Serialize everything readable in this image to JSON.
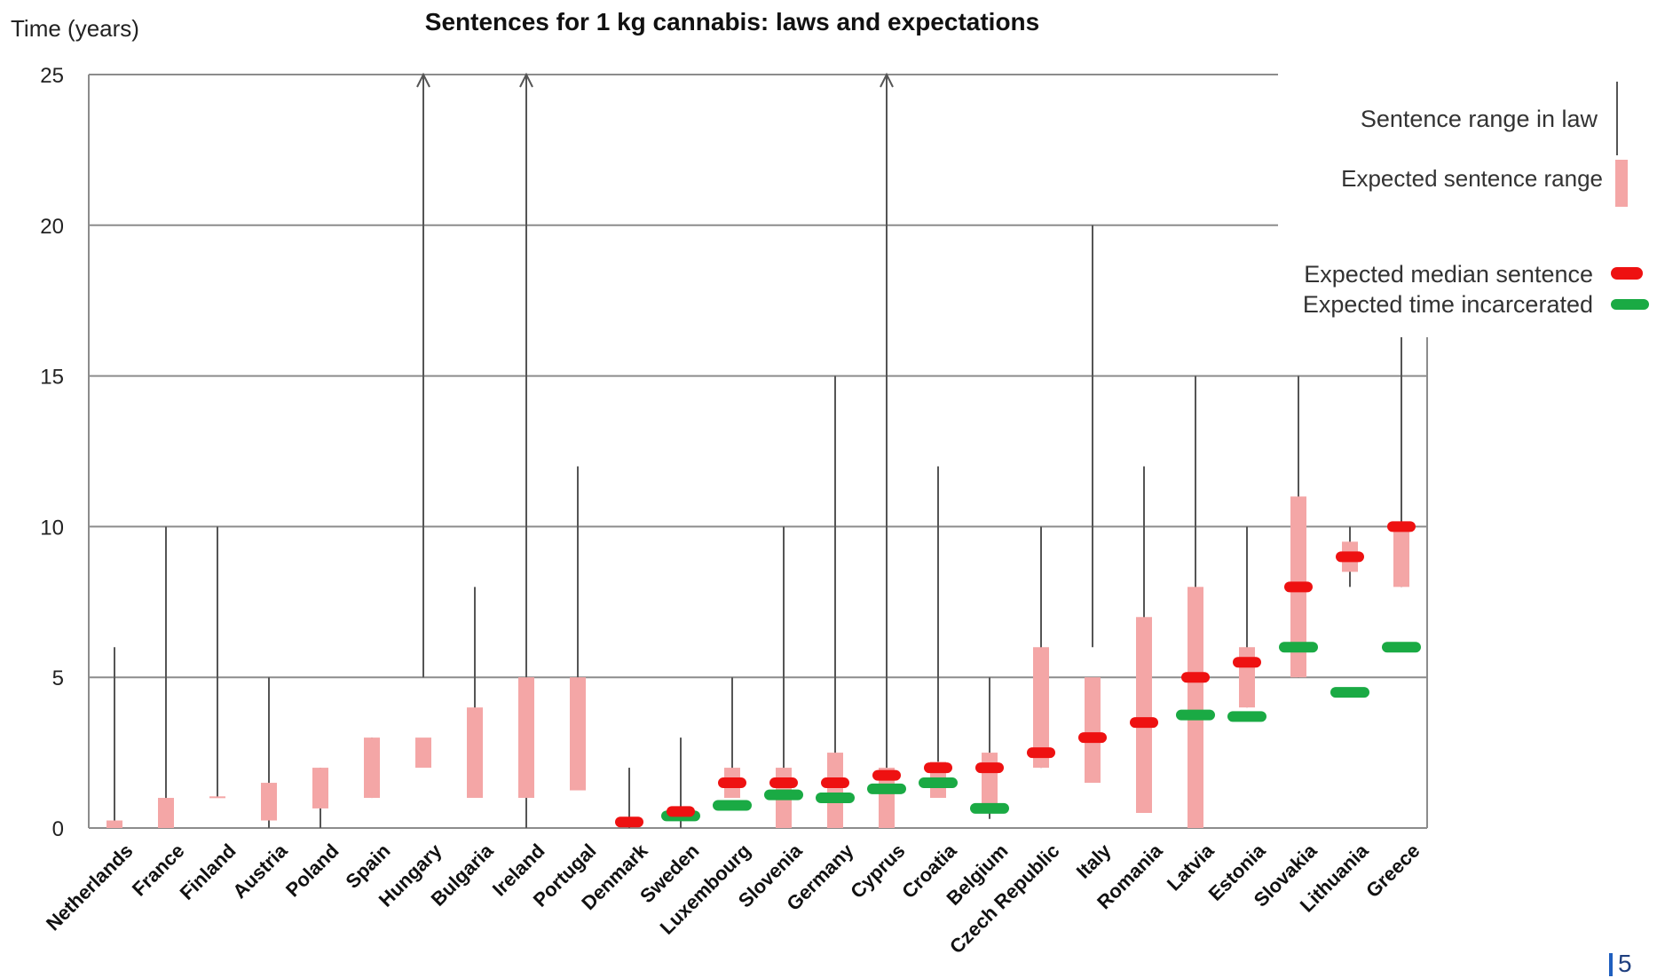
{
  "page": {
    "page_number": "5"
  },
  "colors": {
    "law": "#555555",
    "expected_range": "#f4a6a6",
    "median": "#ee1111",
    "incarcerated": "#1aaa44",
    "grid": "#8c8c8c"
  },
  "chart_data": {
    "type": "range",
    "title": "Sentences for 1 kg cannabis: laws and expectations",
    "ylabel": "Time (years)",
    "xlabel": "",
    "ylim": [
      0,
      25
    ],
    "yticks": [
      "0",
      "5",
      "10",
      "15",
      "20",
      "25"
    ],
    "grid": true,
    "legend_position": "top-right",
    "legend": {
      "law": "Sentence range in law",
      "expected_range": "Expected sentence range",
      "median": "Expected median sentence",
      "incarcerated": "Expected time incarcerated"
    },
    "categories": [
      "Netherlands",
      "France",
      "Finland",
      "Austria",
      "Poland",
      "Spain",
      "Hungary",
      "Bulgaria",
      "Ireland",
      "Portugal",
      "Denmark",
      "Sweden",
      "Luxembourg",
      "Slovenia",
      "Germany",
      "Cyprus",
      "Croatia",
      "Belgium",
      "Czech Republic",
      "Italy",
      "Romania",
      "Latvia",
      "Estonia",
      "Slovakia",
      "Lithuania",
      "Greece"
    ],
    "series": [
      {
        "name": "Sentence range in law",
        "values": [
          [
            0,
            6
          ],
          [
            0,
            10
          ],
          [
            1,
            10
          ],
          [
            0,
            5
          ],
          [
            0,
            2
          ],
          [
            1,
            3
          ],
          [
            5,
            25
          ],
          [
            2,
            8
          ],
          [
            0,
            25
          ],
          [
            4,
            12
          ],
          [
            0,
            2
          ],
          [
            0,
            3
          ],
          [
            1,
            5
          ],
          [
            0,
            10
          ],
          [
            0,
            15
          ],
          [
            0,
            25
          ],
          [
            1,
            12
          ],
          [
            0.3,
            5
          ],
          [
            2,
            10
          ],
          [
            6,
            20
          ],
          [
            2,
            12
          ],
          [
            0,
            15
          ],
          [
            4,
            10
          ],
          [
            5,
            15
          ],
          [
            8,
            10
          ],
          [
            8,
            20
          ]
        ]
      },
      {
        "name": "Expected sentence range",
        "values": [
          [
            0,
            0.25
          ],
          [
            0,
            1
          ],
          [
            1,
            1.05
          ],
          [
            0.25,
            1.5
          ],
          [
            0.65,
            2
          ],
          [
            1,
            3
          ],
          [
            2,
            3
          ],
          [
            1,
            4
          ],
          [
            1,
            5
          ],
          [
            1.25,
            5
          ],
          [
            null,
            null
          ],
          [
            null,
            null
          ],
          [
            1,
            2
          ],
          [
            0,
            2
          ],
          [
            0,
            2.5
          ],
          [
            0,
            2
          ],
          [
            1,
            2.2
          ],
          [
            0.5,
            2.5
          ],
          [
            2,
            6
          ],
          [
            1.5,
            5
          ],
          [
            0.5,
            7
          ],
          [
            0,
            8
          ],
          [
            4,
            6
          ],
          [
            5,
            11
          ],
          [
            8.5,
            9.5
          ],
          [
            8,
            10
          ]
        ]
      },
      {
        "name": "Expected median sentence",
        "values": [
          null,
          null,
          null,
          null,
          null,
          null,
          null,
          null,
          null,
          null,
          0.2,
          0.55,
          1.5,
          1.5,
          1.5,
          1.75,
          2,
          2,
          2.5,
          3,
          3.5,
          5,
          5.5,
          8,
          9,
          10
        ]
      },
      {
        "name": "Expected time incarcerated",
        "values": [
          null,
          null,
          null,
          null,
          null,
          null,
          null,
          null,
          null,
          null,
          null,
          0.4,
          0.75,
          1.1,
          1,
          1.3,
          1.5,
          0.65,
          null,
          null,
          null,
          3.75,
          3.7,
          6,
          4.5,
          6
        ]
      }
    ]
  }
}
